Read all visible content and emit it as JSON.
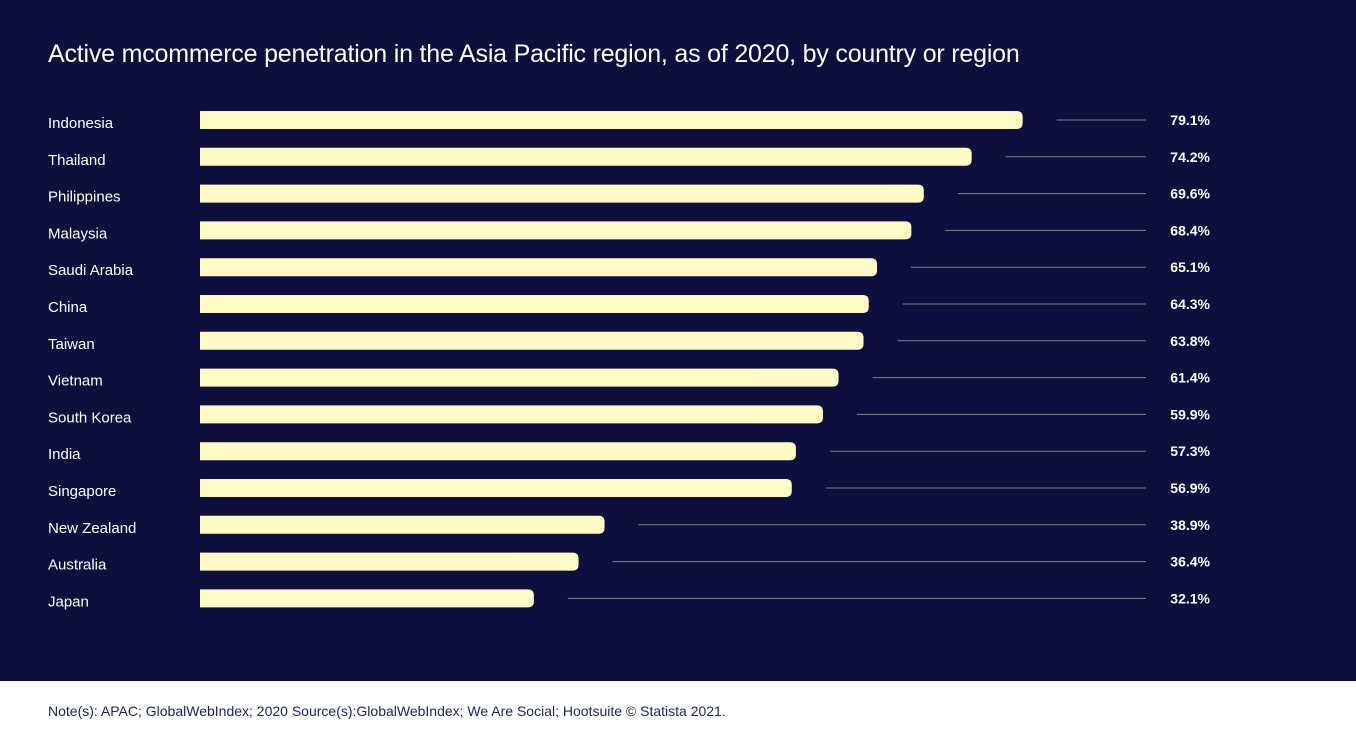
{
  "colors": {
    "background": "#0e0f3d",
    "bar": "#fffbc7",
    "leader_line": "#7d8194",
    "text": "#ffffff",
    "footer_text": "#1e2455"
  },
  "chart_data": {
    "type": "bar",
    "orientation": "horizontal",
    "title": "Active mcommerce penetration in the Asia Pacific region, as of 2020, by country or region",
    "categories": [
      "Indonesia",
      "Thailand",
      "Philippines",
      "Malaysia",
      "Saudi Arabia",
      "China",
      "Taiwan",
      "Vietnam",
      "South Korea",
      "India",
      "Singapore",
      "New Zealand",
      "Australia",
      "Japan"
    ],
    "values": [
      79.1,
      74.2,
      69.6,
      68.4,
      65.1,
      64.3,
      63.8,
      61.4,
      59.9,
      57.3,
      56.9,
      38.9,
      36.4,
      32.1
    ],
    "value_labels": [
      "79.1%",
      "74.2%",
      "69.6%",
      "68.4%",
      "65.1%",
      "64.3%",
      "63.8%",
      "61.4%",
      "59.9%",
      "57.3%",
      "56.9%",
      "38.9%",
      "36.4%",
      "32.1%"
    ],
    "unit": "%",
    "xlim": [
      0,
      100
    ],
    "grid": false,
    "legend": "none"
  },
  "footer": {
    "note": "Note(s): APAC; GlobalWebIndex; 2020 Source(s):GlobalWebIndex; We Are Social; Hootsuite © Statista 2021."
  }
}
